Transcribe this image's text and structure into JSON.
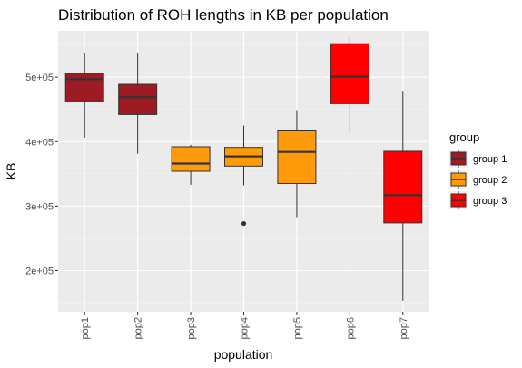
{
  "chart_data": {
    "type": "box",
    "title": "Distribution of ROH lengths in KB per population",
    "xlabel": "population",
    "ylabel": "KB",
    "ylim": [
      136000,
      572000
    ],
    "yticks": [
      200000,
      300000,
      400000,
      500000
    ],
    "ytick_labels": [
      "2e+05",
      "3e+05",
      "4e+05",
      "5e+05"
    ],
    "categories": [
      "pop1",
      "pop2",
      "pop3",
      "pop4",
      "pop5",
      "pop6",
      "pop7"
    ],
    "boxes": [
      {
        "category": "pop1",
        "group": "group 1",
        "min": 406000,
        "q1": 462000,
        "median": 497000,
        "q3": 506000,
        "max": 537000,
        "outliers": []
      },
      {
        "category": "pop2",
        "group": "group 1",
        "min": 381000,
        "q1": 442000,
        "median": 469000,
        "q3": 489000,
        "max": 537000,
        "outliers": []
      },
      {
        "category": "pop3",
        "group": "group 2",
        "min": 333000,
        "q1": 354000,
        "median": 366000,
        "q3": 392000,
        "max": 395000,
        "outliers": []
      },
      {
        "category": "pop4",
        "group": "group 2",
        "min": 332000,
        "q1": 362000,
        "median": 377000,
        "q3": 391000,
        "max": 425000,
        "outliers": [
          273000
        ]
      },
      {
        "category": "pop5",
        "group": "group 2",
        "min": 283000,
        "q1": 335000,
        "median": 384000,
        "q3": 418000,
        "max": 449000,
        "outliers": []
      },
      {
        "category": "pop6",
        "group": "group 3",
        "min": 413000,
        "q1": 459000,
        "median": 501000,
        "q3": 552000,
        "max": 563000,
        "outliers": []
      },
      {
        "category": "pop7",
        "group": "group 3",
        "min": 153000,
        "q1": 274000,
        "median": 317000,
        "q3": 385000,
        "max": 479000,
        "outliers": []
      }
    ],
    "legend": {
      "title": "group",
      "position": "right",
      "items": [
        {
          "label": "group 1",
          "color": "#9e1b24"
        },
        {
          "label": "group 2",
          "color": "#ff9a0a"
        },
        {
          "label": "group 3",
          "color": "#ff0000"
        }
      ]
    },
    "grid": true,
    "panel_background": "#ebebeb"
  }
}
